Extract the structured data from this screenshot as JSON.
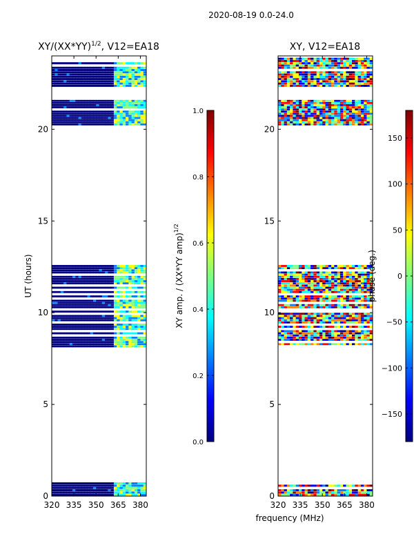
{
  "suptitle": "2020-08-19 0.0-24.0",
  "colors": {
    "jet": [
      "#00007f",
      "#0000ff",
      "#007fff",
      "#00ffff",
      "#7fff7f",
      "#ffff00",
      "#ff7f00",
      "#ff0000",
      "#7f0000"
    ],
    "frame": "#000000",
    "background": "#ffffff"
  },
  "chart_data": [
    {
      "type": "heatmap",
      "title": "XY/(XX*YY)",
      "title_superscript": "1/2",
      "title_suffix": ", V12=EA18",
      "xlabel": "",
      "ylabel": "UT (hours)",
      "xlim": [
        320,
        384
      ],
      "ylim": [
        0,
        24
      ],
      "xticks": [
        320,
        335,
        350,
        365,
        380
      ],
      "yticks": [
        0,
        5,
        10,
        15,
        20
      ],
      "occupied_time_ranges": [
        [
          0.0,
          0.75
        ],
        [
          8.1,
          12.6
        ],
        [
          20.2,
          21.6
        ],
        [
          22.3,
          23.9
        ]
      ],
      "value_description": "mostly ~0.0 below 361 MHz; patchy 0.2-0.6 between 361-384 MHz",
      "colorbar": {
        "label": "XY amp. / (XX*YY amp)",
        "label_superscript": "1/2",
        "range": [
          0.0,
          1.0
        ],
        "ticks": [
          "0.0",
          "0.2",
          "0.4",
          "0.6",
          "0.8",
          "1.0"
        ]
      }
    },
    {
      "type": "heatmap",
      "title": "XY, V12=EA18",
      "xlabel": "frequency (MHz)",
      "ylabel": "",
      "xlim": [
        320,
        384
      ],
      "ylim": [
        0,
        24
      ],
      "xticks": [
        320,
        335,
        350,
        365,
        380
      ],
      "yticks": [
        0,
        5,
        10,
        15,
        20
      ],
      "occupied_time_ranges": [
        [
          0.0,
          0.75
        ],
        [
          8.1,
          12.6
        ],
        [
          20.2,
          21.6
        ],
        [
          22.3,
          23.9
        ]
      ],
      "value_description": "phase varies across full range -180 to 180 deg",
      "colorbar": {
        "label": "phase (deg.)",
        "range": [
          -180,
          180
        ],
        "ticks": [
          "150",
          "100",
          "50",
          "0",
          "−50",
          "−100",
          "−150"
        ]
      }
    }
  ]
}
